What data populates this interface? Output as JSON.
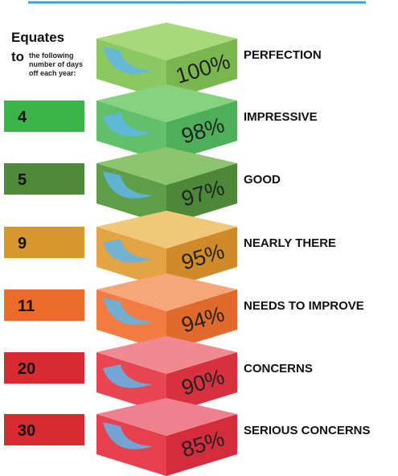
{
  "header": {
    "title": "Equates",
    "to": "to",
    "subtitle": "the following number of days off each year:"
  },
  "levels": [
    {
      "percent": "100%",
      "label": "PERFECTION"
    },
    {
      "days": 4,
      "percent": "98%",
      "label": "IMPRESSIVE"
    },
    {
      "days": 5,
      "percent": "97%",
      "label": "GOOD"
    },
    {
      "days": 9,
      "percent": "95%",
      "label": "NEARLY THERE"
    },
    {
      "days": 11,
      "percent": "94%",
      "label": "NEEDS TO IMPROVE"
    },
    {
      "days": 20,
      "percent": "90%",
      "label": "CONCERNS"
    },
    {
      "days": 30,
      "percent": "85%",
      "label": "SERIOUS CONCERNS"
    }
  ]
}
